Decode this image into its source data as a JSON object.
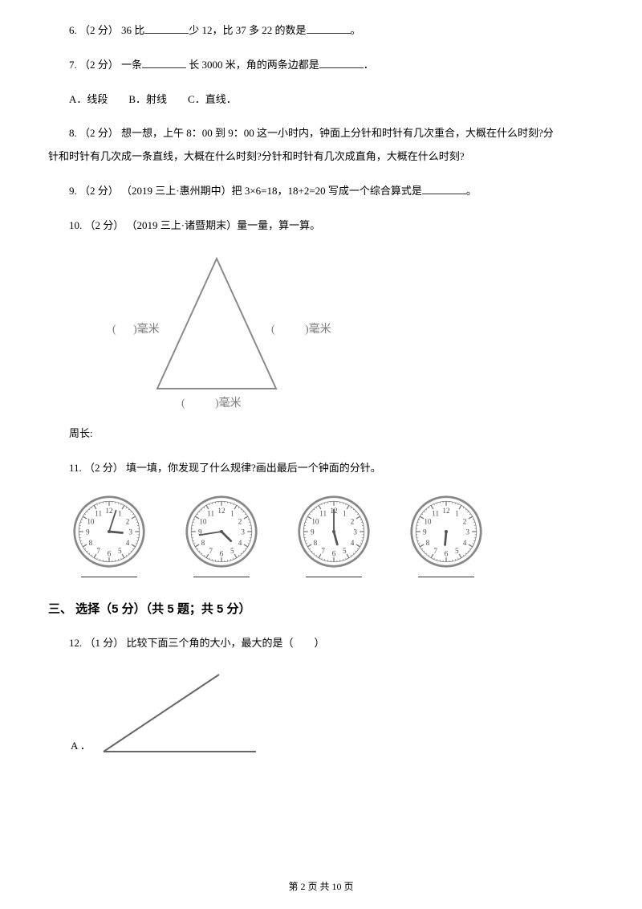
{
  "q6": {
    "text_a": "6. （2 分） 36 比",
    "text_b": "少 12，比 37 多 22 的数是",
    "text_c": "。"
  },
  "q7": {
    "text_a": "7. （2 分） 一条",
    "text_b": " 长 3000 米，角的两条边都是",
    "text_c": "．"
  },
  "q7_opts": "A．线段　　B．射线　　C．直线．",
  "q8": {
    "line1": "8. （2 分） 想一想，上午 8：00 到 9：00 这一小时内，钟面上分针和时针有几次重合，大概在什么时刻?分",
    "line2": "针和时针有几次成一条直线，大概在什么时刻?分针和时针有几次成直角，大概在什么时刻?"
  },
  "q9": {
    "text_a": "9. （2 分） （2019 三上·惠州期中）把 3×6=18，18+2=20 写成一个综合算式是",
    "text_b": "。"
  },
  "q10": "10. （2 分） （2019 三上·诸暨期末）量一量，算一算。",
  "triangle": {
    "left_label_a": "(",
    "left_label_b": ")毫米",
    "right_label_a": "(",
    "right_label_b": ")毫米",
    "bottom_label_a": "(",
    "bottom_label_b": ")毫米",
    "stroke": "#8a8a8a",
    "text_color": "#7a7a7a"
  },
  "q_peri": "周长:",
  "q11": "11. （2 分） 填一填，你发现了什么规律?画出最后一个钟面的分针。",
  "clocks": {
    "face_stroke": "#888888",
    "tick_stroke": "#777777",
    "num_color": "#4a4a4a",
    "hand_stroke": "#555555",
    "items": [
      {
        "hour_angle": 95,
        "min_angle": 18,
        "show_min": true
      },
      {
        "hour_angle": 135,
        "min_angle": 261,
        "show_min": true
      },
      {
        "hour_angle": 165,
        "min_angle": 0,
        "show_min": true
      },
      {
        "hour_angle": 185,
        "min_angle": 0,
        "show_min": false
      }
    ]
  },
  "section3": "三、 选择（5 分）（共 5 题；共 5 分）",
  "q12": "12. （1 分） 比较下面三个角的大小，最大的是（　　）",
  "q12_opt_label": "A ．",
  "angle": {
    "stroke": "#666666"
  },
  "footer": "第 2 页 共 10 页"
}
